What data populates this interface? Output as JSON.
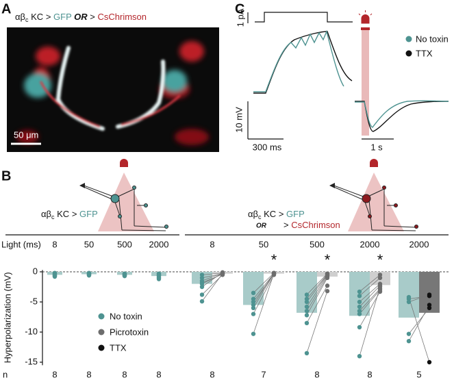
{
  "panels": {
    "a": "A",
    "b": "B",
    "c": "C"
  },
  "genotype": {
    "cell": "αβ",
    "subscript": "c",
    "kc": "KC",
    "gt": ">",
    "gfp": "GFP",
    "or": "OR",
    "chrimson": "CsChrimson"
  },
  "panel_a": {
    "scale_bar": "50 μm"
  },
  "panel_c": {
    "current_scale": "1 pA",
    "voltage_scale": "10 mV",
    "time_left": "300 ms",
    "time_right": "1 s",
    "legend": [
      {
        "name": "No toxin",
        "color": "#4e9391"
      },
      {
        "name": "TTX",
        "color": "#111111"
      }
    ]
  },
  "chart_data": {
    "type": "bar",
    "ylabel": "Hyperpolarization (mV)",
    "light_label": "Light (ms)",
    "n_label": "n",
    "categories": [
      "8",
      "50",
      "500",
      "2000",
      "8",
      "50",
      "500",
      "2000",
      "2000"
    ],
    "n": [
      8,
      8,
      8,
      8,
      8,
      7,
      8,
      8,
      5
    ],
    "significance": [
      null,
      null,
      null,
      null,
      null,
      "*",
      "*",
      "*",
      null
    ],
    "ylim": [
      -15.5,
      0.3
    ],
    "yticks": [
      0,
      -5,
      -10,
      -15
    ],
    "series": [
      {
        "name": "No toxin",
        "color": "#4e9391",
        "bar_color": "#a8cbc9",
        "values": [
          -0.5,
          -0.4,
          -0.5,
          -0.7,
          -2,
          -5.5,
          -6.8,
          -7.3,
          -7.6
        ],
        "points": [
          [
            -0.2,
            -0.3,
            -0.4,
            -0.5,
            -0.6,
            -0.7,
            -0.8,
            -0.5
          ],
          [
            -0.2,
            -0.3,
            -0.4,
            -0.5,
            -0.6,
            -0.4,
            -0.3,
            -0.5
          ],
          [
            -0.3,
            -0.4,
            -0.5,
            -0.6,
            -0.7,
            -0.5,
            -0.4,
            -0.6
          ],
          [
            -0.3,
            -0.5,
            -0.7,
            -0.9,
            -1,
            -1.2,
            -0.6,
            -0.4
          ],
          [
            -0.5,
            -1,
            -1.5,
            -1.8,
            -2,
            -2.5,
            -3.8,
            -4.9
          ],
          [
            -3.5,
            -4.5,
            -5,
            -5.5,
            -6,
            -7,
            -10.3
          ],
          [
            -3.8,
            -4.5,
            -5,
            -5.8,
            -6.5,
            -7.2,
            -8.5,
            -13.5
          ],
          [
            -3.3,
            -4,
            -5,
            -5.8,
            -6.5,
            -7,
            -9.2,
            -14
          ],
          [
            -4.5,
            -5,
            -10.3,
            -11.5,
            -4.2
          ]
        ]
      },
      {
        "name": "Picrotoxin",
        "color": "#6d6d6d",
        "bar_color": "#cfcfcf",
        "values": [
          null,
          null,
          null,
          null,
          -0.3,
          -0.3,
          -0.8,
          -2.2,
          null
        ],
        "points": [
          null,
          null,
          null,
          null,
          [
            -0.2,
            -0.3,
            -0.2,
            -0.4,
            -0.3,
            -0.1,
            -0.5,
            -0.3
          ],
          [
            -0.2,
            -0.3,
            -0.4,
            -0.2,
            -0.3,
            -0.5,
            -0.3
          ],
          [
            -0.3,
            -0.4,
            -0.5,
            -0.6,
            -0.8,
            -1,
            -2.3,
            -3.2
          ],
          [
            -0.5,
            -1,
            -2,
            -2.3,
            -2.8,
            -3,
            -3.3,
            -2.5
          ],
          null
        ]
      },
      {
        "name": "TTX",
        "color": "#111111",
        "bar_color": "#777777",
        "values": [
          null,
          null,
          null,
          null,
          null,
          null,
          null,
          null,
          -6.8
        ],
        "points": [
          null,
          null,
          null,
          null,
          null,
          null,
          null,
          null,
          [
            -4,
            -3.8,
            -6,
            -5.5,
            -15
          ]
        ]
      }
    ]
  }
}
